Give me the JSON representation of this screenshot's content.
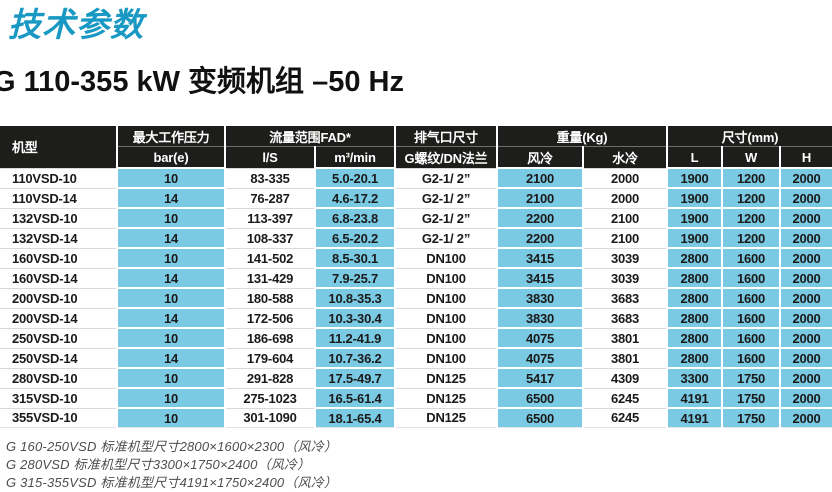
{
  "page": {
    "title": "技术参数",
    "subtitle": "G 110-355 kW 变频机组 –50 Hz"
  },
  "colors": {
    "accent_teal": "#1898c2",
    "header_bg": "#1d1d1b",
    "cell_blue": "#7bcae3",
    "footnote_gray": "#4d4d4d"
  },
  "table": {
    "group_headers": {
      "model": "机型",
      "max_pressure": "最大工作压力",
      "flow_range": "流量范围FAD*",
      "outlet_size": "排气口尺寸",
      "weight": "重量(Kg)",
      "dimensions": "尺寸(mm)"
    },
    "sub_headers": [
      "bar(e)",
      "l/S",
      "m³/min",
      "G螺纹/DN法兰",
      "风冷",
      "水冷",
      "L",
      "W",
      "H"
    ],
    "rows": [
      [
        "110VSD-10",
        "10",
        "83-335",
        "5.0-20.1",
        "G2-1/ 2”",
        "2100",
        "2000",
        "1900",
        "1200",
        "2000"
      ],
      [
        "110VSD-14",
        "14",
        "76-287",
        "4.6-17.2",
        "G2-1/ 2”",
        "2100",
        "2000",
        "1900",
        "1200",
        "2000"
      ],
      [
        "132VSD-10",
        "10",
        "113-397",
        "6.8-23.8",
        "G2-1/ 2”",
        "2200",
        "2100",
        "1900",
        "1200",
        "2000"
      ],
      [
        "132VSD-14",
        "14",
        "108-337",
        "6.5-20.2",
        "G2-1/ 2”",
        "2200",
        "2100",
        "1900",
        "1200",
        "2000"
      ],
      [
        "160VSD-10",
        "10",
        "141-502",
        "8.5-30.1",
        "DN100",
        "3415",
        "3039",
        "2800",
        "1600",
        "2000"
      ],
      [
        "160VSD-14",
        "14",
        "131-429",
        "7.9-25.7",
        "DN100",
        "3415",
        "3039",
        "2800",
        "1600",
        "2000"
      ],
      [
        "200VSD-10",
        "10",
        "180-588",
        "10.8-35.3",
        "DN100",
        "3830",
        "3683",
        "2800",
        "1600",
        "2000"
      ],
      [
        "200VSD-14",
        "14",
        "172-506",
        "10.3-30.4",
        "DN100",
        "3830",
        "3683",
        "2800",
        "1600",
        "2000"
      ],
      [
        "250VSD-10",
        "10",
        "186-698",
        "11.2-41.9",
        "DN100",
        "4075",
        "3801",
        "2800",
        "1600",
        "2000"
      ],
      [
        "250VSD-14",
        "14",
        "179-604",
        "10.7-36.2",
        "DN100",
        "4075",
        "3801",
        "2800",
        "1600",
        "2000"
      ],
      [
        "280VSD-10",
        "10",
        "291-828",
        "17.5-49.7",
        "DN125",
        "5417",
        "4309",
        "3300",
        "1750",
        "2000"
      ],
      [
        "315VSD-10",
        "10",
        "275-1023",
        "16.5-61.4",
        "DN125",
        "6500",
        "6245",
        "4191",
        "1750",
        "2000"
      ],
      [
        "355VSD-10",
        "10",
        "301-1090",
        "18.1-65.4",
        "DN125",
        "6500",
        "6245",
        "4191",
        "1750",
        "2000"
      ]
    ]
  },
  "footnotes": [
    "G 160-250VSD 标准机型尺寸2800×1600×2300（风冷）",
    "G 280VSD 标准机型尺寸3300×1750×2400（风冷）",
    "G 315-355VSD 标准机型尺寸4191×1750×2400（风冷）"
  ]
}
